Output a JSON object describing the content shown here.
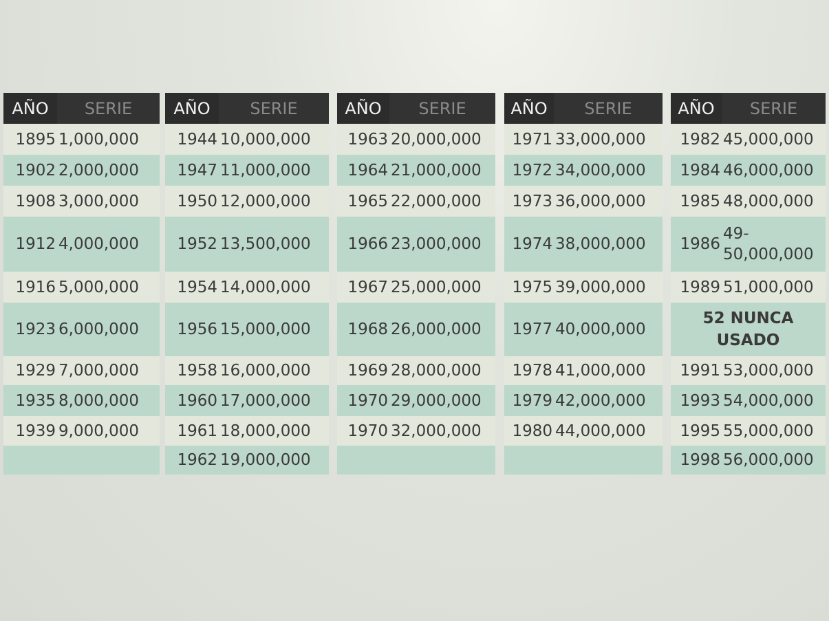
{
  "tables": [
    {
      "headers": [
        "AÑO",
        "SERIE"
      ],
      "rows": [
        [
          "1895",
          "1,000,000"
        ],
        [
          "1902",
          "2,000,000"
        ],
        [
          "1908",
          "3,000,000"
        ],
        [
          "1912",
          "4,000,000"
        ],
        [
          "1916",
          "5,000,000"
        ],
        [
          "1923",
          "6,000,000"
        ],
        [
          "1929",
          "7,000,000"
        ],
        [
          "1935",
          "8,000,000"
        ],
        [
          "1939",
          "9,000,000"
        ]
      ]
    },
    {
      "headers": [
        "AÑO",
        "SERIE"
      ],
      "rows": [
        [
          "1944",
          "10,000,000"
        ],
        [
          "1947",
          "11,000,000"
        ],
        [
          "1950",
          "12,000,000"
        ],
        [
          "1952",
          "13,500,000"
        ],
        [
          "1954",
          "14,000,000"
        ],
        [
          "1956",
          "15,000,000"
        ],
        [
          "1958",
          "16,000,000"
        ],
        [
          "1960",
          "17,000,000"
        ],
        [
          "1961",
          "18,000,000"
        ],
        [
          "1962",
          "19,000,000"
        ]
      ]
    },
    {
      "headers": [
        "AÑO",
        "SERIE"
      ],
      "rows": [
        [
          "1963",
          "20,000,000"
        ],
        [
          "1964",
          "21,000,000"
        ],
        [
          "1965",
          "22,000,000"
        ],
        [
          "1966",
          "23,000,000"
        ],
        [
          "1967",
          "25,000,000"
        ],
        [
          "1968",
          "26,000,000"
        ],
        [
          "1969",
          "28,000,000"
        ],
        [
          "1970",
          "29,000,000"
        ],
        [
          "1970",
          "32,000,000"
        ]
      ]
    },
    {
      "headers": [
        "AÑO",
        "SERIE"
      ],
      "rows": [
        [
          "1971",
          "33,000,000"
        ],
        [
          "1972",
          "34,000,000"
        ],
        [
          "1973",
          "36,000,000"
        ],
        [
          "1974",
          "38,000,000"
        ],
        [
          "1975",
          "39,000,000"
        ],
        [
          "1977",
          "40,000,000"
        ],
        [
          "1978",
          "41,000,000"
        ],
        [
          "1979",
          "42,000,000"
        ],
        [
          "1980",
          "44,000,000"
        ]
      ]
    },
    {
      "headers": [
        "AÑO",
        "SERIE"
      ],
      "rows": [
        [
          "1982",
          "45,000,000"
        ],
        [
          "1984",
          "46,000,000"
        ],
        [
          "1985",
          "48,000,000"
        ],
        [
          "1986",
          "49-50,000,000"
        ],
        [
          "1989",
          "51,000,000"
        ],
        [
          "52 NUNCA USADO"
        ],
        [
          "1991",
          "53,000,000"
        ],
        [
          "1993",
          "54,000,000"
        ],
        [
          "1995",
          "55,000,000"
        ],
        [
          "1998",
          "56,000,000"
        ]
      ]
    }
  ]
}
